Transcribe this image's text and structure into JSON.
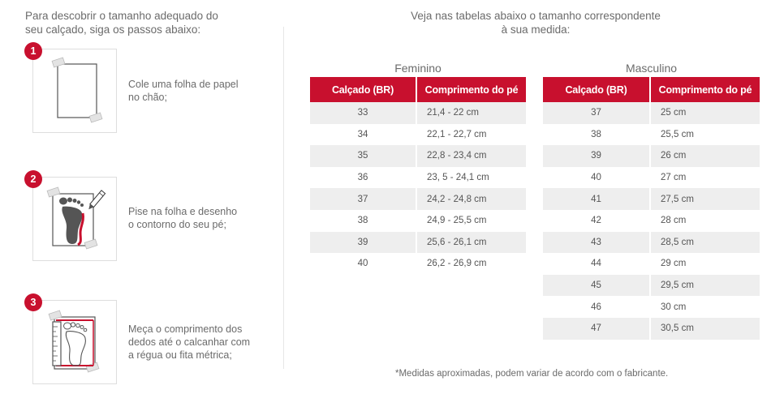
{
  "intro": {
    "line1": "Para descobrir o tamanho adequado do",
    "line2": "seu calçado, siga os passos abaixo:"
  },
  "steps": [
    {
      "number": "1",
      "line1": "Cole uma folha de papel",
      "line2": "no chão;",
      "line3": "",
      "icon": "paper-sheet-icon"
    },
    {
      "number": "2",
      "line1": "Pise na folha e desenho",
      "line2": "o contorno do seu pé;",
      "line3": "",
      "icon": "foot-trace-icon"
    },
    {
      "number": "3",
      "line1": "Meça o comprimento dos",
      "line2": "dedos até o calcanhar com",
      "line3": "a régua ou fita métrica;",
      "icon": "foot-measure-icon"
    }
  ],
  "tables_heading": {
    "line1": "Veja nas tabelas abaixo o tamanho correspondente",
    "line2": "à sua medida:"
  },
  "feminino": {
    "caption": "Feminino",
    "headers": [
      "Calçado (BR)",
      "Comprimento do pé"
    ],
    "rows": [
      [
        "33",
        "21,4 - 22 cm"
      ],
      [
        "34",
        "22,1 - 22,7 cm"
      ],
      [
        "35",
        "22,8 - 23,4 cm"
      ],
      [
        "36",
        "23, 5 - 24,1 cm"
      ],
      [
        "37",
        "24,2 - 24,8 cm"
      ],
      [
        "38",
        "24,9 - 25,5 cm"
      ],
      [
        "39",
        "25,6 - 26,1 cm"
      ],
      [
        "40",
        "26,2 - 26,9 cm"
      ]
    ]
  },
  "masculino": {
    "caption": "Masculino",
    "headers": [
      "Calçado (BR)",
      "Comprimento do pé"
    ],
    "rows": [
      [
        "37",
        "25 cm"
      ],
      [
        "38",
        "25,5 cm"
      ],
      [
        "39",
        "26 cm"
      ],
      [
        "40",
        "27 cm"
      ],
      [
        "41",
        "27,5 cm"
      ],
      [
        "42",
        "28 cm"
      ],
      [
        "43",
        "28,5 cm"
      ],
      [
        "44",
        "29 cm"
      ],
      [
        "45",
        "29,5 cm"
      ],
      [
        "46",
        "30 cm"
      ],
      [
        "47",
        "30,5 cm"
      ]
    ]
  },
  "footnote": "*Medidas aproximadas, podem variar de acordo com o fabricante.",
  "colors": {
    "accent": "#c8102e",
    "row_stripe": "#eeeeee",
    "text": "#6b6b6b"
  }
}
